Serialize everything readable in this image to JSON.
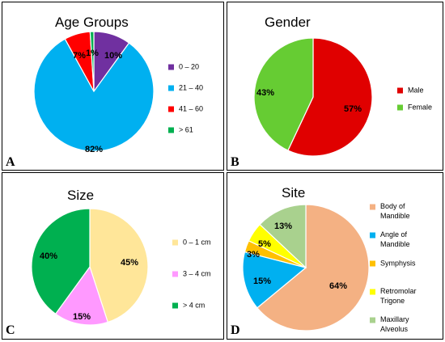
{
  "chart_data": [
    {
      "type": "pie",
      "panel_letter": "A",
      "title": "Age Groups",
      "slices": [
        {
          "label": "0 – 20",
          "value": 10,
          "display": "10%",
          "color": "#7030A0"
        },
        {
          "label": "21 – 40",
          "value": 82,
          "display": "82%",
          "color": "#00B0F0"
        },
        {
          "label": "41 – 60",
          "value": 7,
          "display": "7%",
          "color": "#FF0000"
        },
        {
          "label": "> 61",
          "value": 1,
          "display": "1%",
          "color": "#00B050"
        }
      ],
      "legend_position": "right"
    },
    {
      "type": "pie",
      "panel_letter": "B",
      "title": "Gender",
      "slices": [
        {
          "label": "Male",
          "value": 57,
          "display": "57%",
          "color": "#E00000"
        },
        {
          "label": "Female",
          "value": 43,
          "display": "43%",
          "color": "#66CC33"
        }
      ],
      "legend_position": "right"
    },
    {
      "type": "pie",
      "panel_letter": "C",
      "title": "Size",
      "slices": [
        {
          "label": "0 – 1 cm",
          "value": 45,
          "display": "45%",
          "color": "#FFE699"
        },
        {
          "label": "3 – 4 cm",
          "value": 15,
          "display": "15%",
          "color": "#FF99FF"
        },
        {
          "label": "> 4 cm",
          "value": 40,
          "display": "40%",
          "color": "#00B050"
        }
      ],
      "legend_position": "right"
    },
    {
      "type": "pie",
      "panel_letter": "D",
      "title": "Site",
      "slices": [
        {
          "label": "Body of Mandible",
          "value": 64,
          "display": "64%",
          "color": "#F4B183"
        },
        {
          "label": "Angle of Mandible",
          "value": 15,
          "display": "15%",
          "color": "#00B0F0"
        },
        {
          "label": "Symphysis",
          "value": 3,
          "display": "3%",
          "color": "#FFC000"
        },
        {
          "label": "Retromolar Trigone",
          "value": 5,
          "display": "5%",
          "color": "#FFFF00"
        },
        {
          "label": "Maxillary Alveolus",
          "value": 13,
          "display": "13%",
          "color": "#A9D18E"
        }
      ],
      "legend_position": "right"
    }
  ]
}
